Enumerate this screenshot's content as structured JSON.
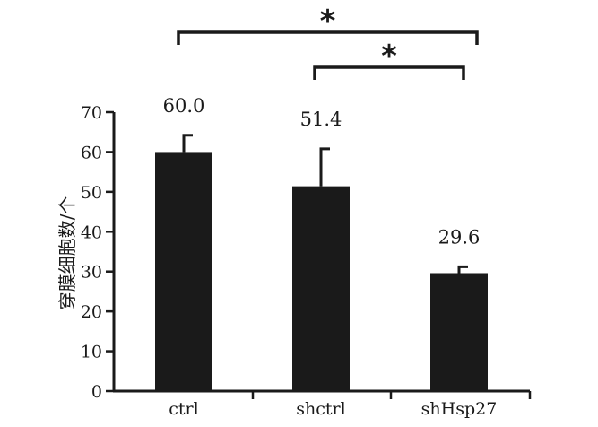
{
  "chart_data": {
    "type": "bar",
    "title": "",
    "xlabel": "",
    "ylabel": "穿膜细胞数/个",
    "ylim": [
      0,
      70
    ],
    "yticks": [
      "0",
      "10",
      "20",
      "30",
      "40",
      "50",
      "60",
      "70"
    ],
    "categories": [
      "ctrl",
      "shctrl",
      "shHsp27"
    ],
    "values": [
      60.0,
      51.4,
      29.6
    ],
    "error_upper": [
      64.2,
      60.8,
      31.2
    ],
    "value_labels": [
      "60.0",
      "51.4",
      "29.6"
    ],
    "bar_color": "#1a1a1a",
    "grid": false,
    "significance": [
      {
        "from": "ctrl",
        "to": "shHsp27",
        "label": "*"
      },
      {
        "from": "shctrl",
        "to": "shHsp27",
        "label": "*"
      }
    ]
  }
}
